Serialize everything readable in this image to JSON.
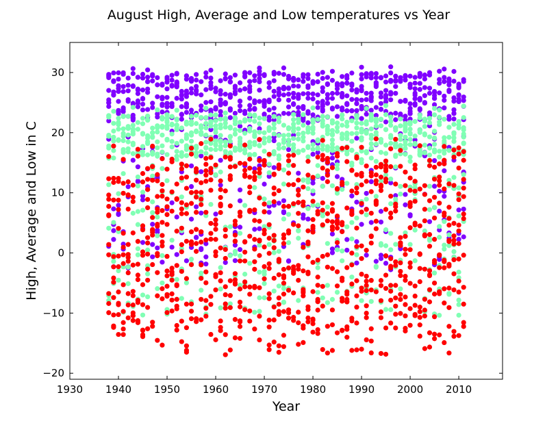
{
  "chart_data": {
    "type": "scatter",
    "title": "August High, Average and Low temperatures vs Year",
    "xlabel": "Year",
    "ylabel": "High, Average and Low in C",
    "xlim": [
      1930,
      2019
    ],
    "ylim": [
      -21,
      35
    ],
    "xticks": [
      1930,
      1940,
      1950,
      1960,
      1970,
      1980,
      1990,
      2000,
      2010
    ],
    "yticks": [
      -20,
      -10,
      0,
      10,
      20,
      30
    ],
    "year_range": [
      1938,
      2011
    ],
    "series": [
      {
        "color": "#8000ff",
        "y_min": -3.0,
        "y_max": 31.0,
        "dense_min": 22.0,
        "dense_max": 30.0
      },
      {
        "color": "#80ffb4",
        "y_min": -10.5,
        "y_max": 24.5,
        "dense_min": 16.0,
        "dense_max": 23.0
      },
      {
        "color": "#ff0000",
        "y_min": -17.0,
        "y_max": 19.0,
        "dense_min": -13.0,
        "dense_max": 16.0
      }
    ],
    "grid": false,
    "legend": "none"
  }
}
